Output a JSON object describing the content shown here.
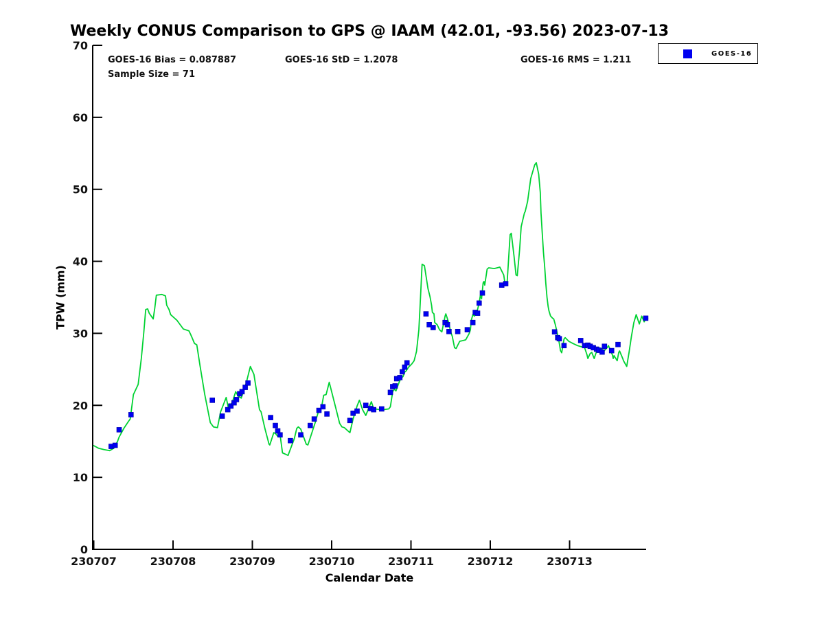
{
  "title": "Weekly CONUS Comparison to GPS @ IAAM (42.01, -93.56) 2023-07-13",
  "stats": {
    "bias": "GOES-16 Bias = 0.087887",
    "std": "GOES-16 StD = 1.2078",
    "rms": "GOES-16 RMS = 1.211",
    "sample": "Sample Size = 71"
  },
  "legend": {
    "label": "GOES-16",
    "marker_color": "#0000f0",
    "position": "top-right-outside"
  },
  "colors": {
    "gps_line": "#00d232",
    "goes16_marker": "#0000f0",
    "axis": "#000000",
    "tick_text": "#111111",
    "background": "#ffffff"
  },
  "chart_data": {
    "type": "line",
    "title": "Weekly CONUS Comparison to GPS @ IAAM (42.01, -93.56) 2023-07-13",
    "xlabel": "Calendar Date",
    "ylabel": "TPW (mm)",
    "ylim": [
      0,
      70
    ],
    "y_ticks": [
      "0",
      "10",
      "20",
      "30",
      "40",
      "50",
      "60",
      "70"
    ],
    "x_tick_labels": [
      "230707",
      "230708",
      "230709",
      "230710",
      "230711",
      "230712",
      "230713"
    ],
    "x_unit": "fractional days since 230707 00:00",
    "x_range_days": [
      0,
      6.985
    ],
    "grid": false,
    "legend_entries": [
      "GOES-16"
    ],
    "annotations": [
      "GOES-16 Bias = 0.087887",
      "GOES-16 StD = 1.2078",
      "GOES-16 RMS = 1.211",
      "Sample Size = 71"
    ],
    "sample_size": 71,
    "series": [
      {
        "name": "GPS",
        "style": "line",
        "color": "#00d232",
        "points": [
          [
            0.0,
            14.4
          ],
          [
            0.06,
            14.05
          ],
          [
            0.13,
            13.85
          ],
          [
            0.2,
            13.7
          ],
          [
            0.26,
            14.1
          ],
          [
            0.3,
            15.0
          ],
          [
            0.32,
            15.6
          ],
          [
            0.38,
            16.8
          ],
          [
            0.44,
            17.8
          ],
          [
            0.46,
            18.1
          ],
          [
            0.5,
            21.5
          ],
          [
            0.56,
            22.9
          ],
          [
            0.6,
            26.5
          ],
          [
            0.63,
            30.0
          ],
          [
            0.655,
            33.3
          ],
          [
            0.68,
            33.4
          ],
          [
            0.7,
            32.8
          ],
          [
            0.75,
            32.0
          ],
          [
            0.77,
            33.5
          ],
          [
            0.79,
            35.3
          ],
          [
            0.86,
            35.4
          ],
          [
            0.905,
            35.2
          ],
          [
            0.92,
            33.9
          ],
          [
            0.95,
            33.3
          ],
          [
            0.97,
            32.6
          ],
          [
            1.05,
            31.8
          ],
          [
            1.13,
            30.6
          ],
          [
            1.2,
            30.35
          ],
          [
            1.22,
            29.9
          ],
          [
            1.24,
            29.4
          ],
          [
            1.27,
            28.6
          ],
          [
            1.3,
            28.4
          ],
          [
            1.34,
            25.5
          ],
          [
            1.4,
            21.5
          ],
          [
            1.47,
            17.6
          ],
          [
            1.51,
            17.0
          ],
          [
            1.56,
            16.9
          ],
          [
            1.6,
            19.1
          ],
          [
            1.67,
            21.1
          ],
          [
            1.7,
            19.5
          ],
          [
            1.75,
            20.5
          ],
          [
            1.79,
            21.9
          ],
          [
            1.82,
            21.3
          ],
          [
            1.86,
            21.0
          ],
          [
            1.92,
            23.0
          ],
          [
            1.975,
            25.4
          ],
          [
            2.02,
            24.3
          ],
          [
            2.09,
            19.4
          ],
          [
            2.11,
            19.1
          ],
          [
            2.16,
            16.7
          ],
          [
            2.21,
            14.6
          ],
          [
            2.22,
            14.5
          ],
          [
            2.27,
            16.2
          ],
          [
            2.29,
            16.1
          ],
          [
            2.32,
            15.7
          ],
          [
            2.35,
            15.9
          ],
          [
            2.38,
            13.4
          ],
          [
            2.45,
            13.05
          ],
          [
            2.53,
            15.4
          ],
          [
            2.56,
            16.8
          ],
          [
            2.58,
            17.0
          ],
          [
            2.61,
            16.7
          ],
          [
            2.68,
            14.6
          ],
          [
            2.7,
            14.5
          ],
          [
            2.79,
            17.5
          ],
          [
            2.84,
            19.4
          ],
          [
            2.87,
            19.6
          ],
          [
            2.9,
            21.4
          ],
          [
            2.93,
            21.5
          ],
          [
            2.97,
            23.2
          ],
          [
            3.05,
            19.7
          ],
          [
            3.1,
            17.5
          ],
          [
            3.13,
            17.0
          ],
          [
            3.16,
            16.9
          ],
          [
            3.2,
            16.5
          ],
          [
            3.23,
            16.2
          ],
          [
            3.27,
            18.1
          ],
          [
            3.32,
            19.9
          ],
          [
            3.35,
            20.7
          ],
          [
            3.39,
            19.4
          ],
          [
            3.43,
            18.6
          ],
          [
            3.5,
            20.5
          ],
          [
            3.53,
            19.55
          ],
          [
            3.58,
            19.45
          ],
          [
            3.65,
            19.4
          ],
          [
            3.72,
            19.5
          ],
          [
            3.74,
            19.8
          ],
          [
            3.77,
            21.9
          ],
          [
            3.79,
            22.25
          ],
          [
            3.81,
            22.0
          ],
          [
            3.84,
            22.9
          ],
          [
            3.87,
            23.7
          ],
          [
            3.9,
            24.0
          ],
          [
            3.92,
            24.6
          ],
          [
            3.94,
            24.8
          ],
          [
            3.97,
            25.3
          ],
          [
            4.01,
            25.75
          ],
          [
            4.04,
            26.2
          ],
          [
            4.07,
            27.5
          ],
          [
            4.1,
            30.5
          ],
          [
            4.12,
            35.0
          ],
          [
            4.14,
            39.6
          ],
          [
            4.17,
            39.4
          ],
          [
            4.215,
            36.2
          ],
          [
            4.24,
            35.1
          ],
          [
            4.26,
            33.9
          ],
          [
            4.27,
            32.9
          ],
          [
            4.29,
            32.7
          ],
          [
            4.3,
            31.5
          ],
          [
            4.33,
            31.2
          ],
          [
            4.36,
            30.5
          ],
          [
            4.39,
            30.2
          ],
          [
            4.43,
            32.4
          ],
          [
            4.44,
            32.7
          ],
          [
            4.475,
            31.5
          ],
          [
            4.5,
            30.2
          ],
          [
            4.52,
            29.6
          ],
          [
            4.55,
            28.0
          ],
          [
            4.57,
            27.9
          ],
          [
            4.615,
            28.9
          ],
          [
            4.66,
            29.0
          ],
          [
            4.69,
            29.1
          ],
          [
            4.735,
            30.0
          ],
          [
            4.75,
            30.5
          ],
          [
            4.76,
            31.8
          ],
          [
            4.78,
            32.6
          ],
          [
            4.8,
            32.4
          ],
          [
            4.83,
            32.9
          ],
          [
            4.86,
            34.2
          ],
          [
            4.875,
            35.3
          ],
          [
            4.89,
            34.8
          ],
          [
            4.91,
            37.0
          ],
          [
            4.92,
            37.2
          ],
          [
            4.93,
            36.7
          ],
          [
            4.96,
            38.9
          ],
          [
            4.98,
            39.1
          ],
          [
            5.05,
            39.0
          ],
          [
            5.12,
            39.2
          ],
          [
            5.17,
            38.1
          ],
          [
            5.19,
            36.6
          ],
          [
            5.21,
            36.7
          ],
          [
            5.25,
            43.7
          ],
          [
            5.265,
            43.9
          ],
          [
            5.3,
            40.7
          ],
          [
            5.325,
            38.1
          ],
          [
            5.34,
            38.0
          ],
          [
            5.37,
            41.6
          ],
          [
            5.39,
            44.8
          ],
          [
            5.43,
            46.7
          ],
          [
            5.44,
            46.9
          ],
          [
            5.47,
            48.3
          ],
          [
            5.51,
            51.5
          ],
          [
            5.56,
            53.4
          ],
          [
            5.58,
            53.7
          ],
          [
            5.61,
            52.1
          ],
          [
            5.63,
            49.6
          ],
          [
            5.64,
            46.7
          ],
          [
            5.655,
            43.9
          ],
          [
            5.67,
            41.3
          ],
          [
            5.685,
            39.4
          ],
          [
            5.7,
            36.9
          ],
          [
            5.715,
            35.0
          ],
          [
            5.73,
            33.7
          ],
          [
            5.74,
            33.1
          ],
          [
            5.76,
            32.4
          ],
          [
            5.785,
            32.1
          ],
          [
            5.8,
            32.0
          ],
          [
            5.82,
            31.2
          ],
          [
            5.845,
            30.0
          ],
          [
            5.86,
            29.3
          ],
          [
            5.875,
            28.3
          ],
          [
            5.885,
            27.6
          ],
          [
            5.9,
            27.3
          ],
          [
            5.93,
            29.2
          ],
          [
            5.945,
            29.4
          ],
          [
            5.99,
            28.9
          ],
          [
            6.04,
            28.6
          ],
          [
            6.1,
            28.3
          ],
          [
            6.16,
            28.1
          ],
          [
            6.19,
            28.0
          ],
          [
            6.22,
            27.0
          ],
          [
            6.23,
            26.5
          ],
          [
            6.26,
            27.2
          ],
          [
            6.28,
            27.35
          ],
          [
            6.31,
            26.5
          ],
          [
            6.35,
            27.8
          ],
          [
            6.36,
            28.0
          ],
          [
            6.4,
            27.9
          ],
          [
            6.43,
            27.5
          ],
          [
            6.48,
            28.1
          ],
          [
            6.49,
            28.3
          ],
          [
            6.52,
            27.5
          ],
          [
            6.54,
            27.0
          ],
          [
            6.55,
            26.5
          ],
          [
            6.56,
            26.9
          ],
          [
            6.6,
            26.2
          ],
          [
            6.62,
            27.35
          ],
          [
            6.63,
            27.55
          ],
          [
            6.67,
            26.5
          ],
          [
            6.68,
            26.2
          ],
          [
            6.71,
            25.6
          ],
          [
            6.72,
            25.4
          ],
          [
            6.75,
            27.35
          ],
          [
            6.78,
            29.6
          ],
          [
            6.81,
            31.5
          ],
          [
            6.84,
            32.6
          ],
          [
            6.87,
            31.6
          ],
          [
            6.88,
            31.3
          ],
          [
            6.91,
            32.4
          ],
          [
            6.94,
            31.6
          ],
          [
            6.97,
            32.3
          ],
          [
            6.985,
            32.1
          ]
        ]
      },
      {
        "name": "GOES-16",
        "style": "scatter-square",
        "color": "#0000f0",
        "points": [
          [
            0.22,
            14.3
          ],
          [
            0.27,
            14.45
          ],
          [
            0.32,
            16.6
          ],
          [
            0.47,
            18.7
          ],
          [
            1.495,
            20.7
          ],
          [
            1.62,
            18.5
          ],
          [
            1.69,
            19.4
          ],
          [
            1.73,
            19.9
          ],
          [
            1.77,
            20.35
          ],
          [
            1.8,
            20.8
          ],
          [
            1.84,
            21.6
          ],
          [
            1.87,
            21.9
          ],
          [
            1.91,
            22.5
          ],
          [
            1.945,
            23.1
          ],
          [
            2.23,
            18.3
          ],
          [
            2.29,
            17.2
          ],
          [
            2.32,
            16.45
          ],
          [
            2.35,
            15.9
          ],
          [
            2.48,
            15.1
          ],
          [
            2.61,
            15.9
          ],
          [
            2.73,
            17.2
          ],
          [
            2.78,
            18.1
          ],
          [
            2.84,
            19.3
          ],
          [
            2.89,
            19.8
          ],
          [
            2.94,
            18.8
          ],
          [
            3.23,
            17.9
          ],
          [
            3.27,
            18.9
          ],
          [
            3.32,
            19.2
          ],
          [
            3.43,
            20.0
          ],
          [
            3.49,
            19.55
          ],
          [
            3.53,
            19.4
          ],
          [
            3.63,
            19.5
          ],
          [
            3.74,
            21.8
          ],
          [
            3.77,
            22.6
          ],
          [
            3.8,
            22.7
          ],
          [
            3.82,
            23.7
          ],
          [
            3.86,
            23.85
          ],
          [
            3.89,
            24.65
          ],
          [
            3.92,
            25.3
          ],
          [
            3.95,
            25.9
          ],
          [
            4.19,
            32.7
          ],
          [
            4.23,
            31.2
          ],
          [
            4.28,
            30.8
          ],
          [
            4.43,
            31.5
          ],
          [
            4.46,
            31.2
          ],
          [
            4.48,
            30.25
          ],
          [
            4.59,
            30.25
          ],
          [
            4.71,
            30.5
          ],
          [
            4.78,
            31.5
          ],
          [
            4.81,
            32.9
          ],
          [
            4.84,
            32.8
          ],
          [
            4.86,
            34.2
          ],
          [
            4.9,
            35.6
          ],
          [
            5.145,
            36.7
          ],
          [
            5.195,
            36.9
          ],
          [
            5.81,
            30.2
          ],
          [
            5.85,
            29.4
          ],
          [
            5.87,
            29.25
          ],
          [
            5.93,
            28.3
          ],
          [
            6.14,
            29.0
          ],
          [
            6.19,
            28.3
          ],
          [
            6.23,
            28.35
          ],
          [
            6.26,
            28.2
          ],
          [
            6.3,
            28.0
          ],
          [
            6.34,
            27.8
          ],
          [
            6.37,
            27.65
          ],
          [
            6.41,
            27.4
          ],
          [
            6.44,
            28.2
          ],
          [
            6.53,
            27.6
          ],
          [
            6.61,
            28.45
          ],
          [
            6.96,
            32.1
          ]
        ]
      }
    ]
  }
}
